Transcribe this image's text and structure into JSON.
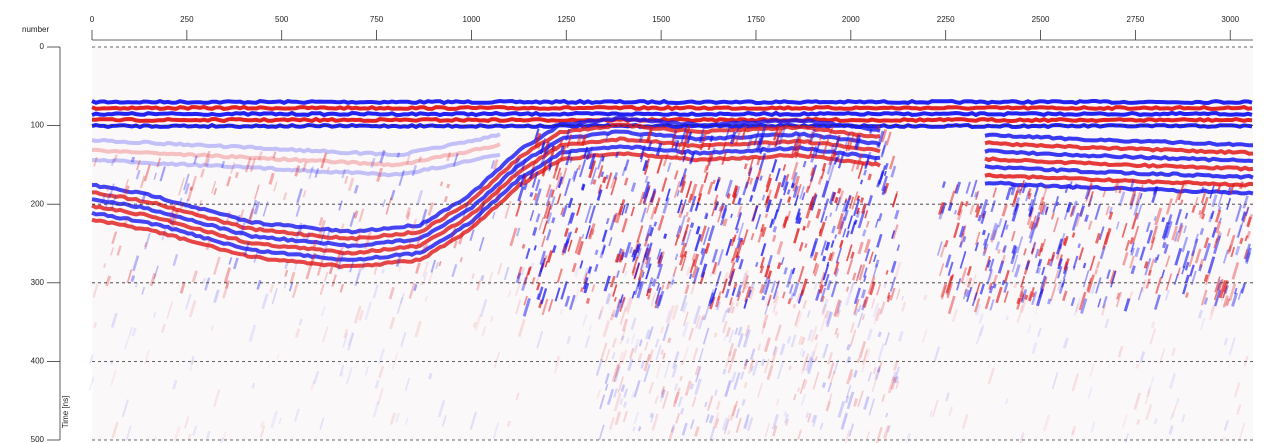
{
  "chart_data": {
    "type": "radargram",
    "x_label": "number",
    "y_label": "Time [ns]",
    "xlim": [
      0,
      3060
    ],
    "ylim": [
      0,
      500
    ],
    "xticks": [
      0,
      250,
      500,
      750,
      1000,
      1250,
      1500,
      1750,
      2000,
      2250,
      2500,
      2750,
      3000
    ],
    "yticks": [
      0,
      100,
      200,
      300,
      400,
      500
    ],
    "grid": true
  }
}
